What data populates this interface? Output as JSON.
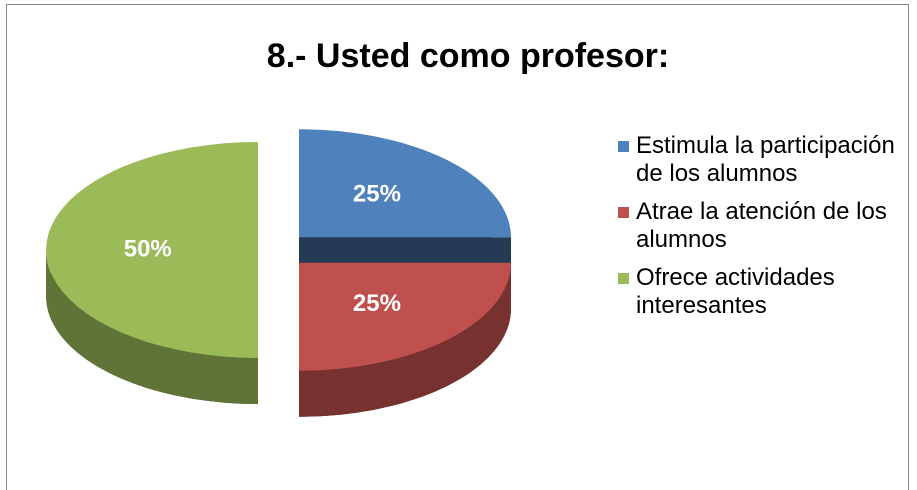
{
  "chart_data": {
    "type": "pie",
    "title": "8.- Usted como profesor:",
    "categories": [
      "Estimula la participación de los alumnos",
      "Atrae la atención de los alumnos",
      "Ofrece actividades interesantes"
    ],
    "values": [
      25,
      25,
      50
    ],
    "value_labels": [
      "25%",
      "25%",
      "50%"
    ],
    "colors": [
      "#4f81bd",
      "#c0504d",
      "#9bbb59"
    ],
    "legend": "right"
  }
}
